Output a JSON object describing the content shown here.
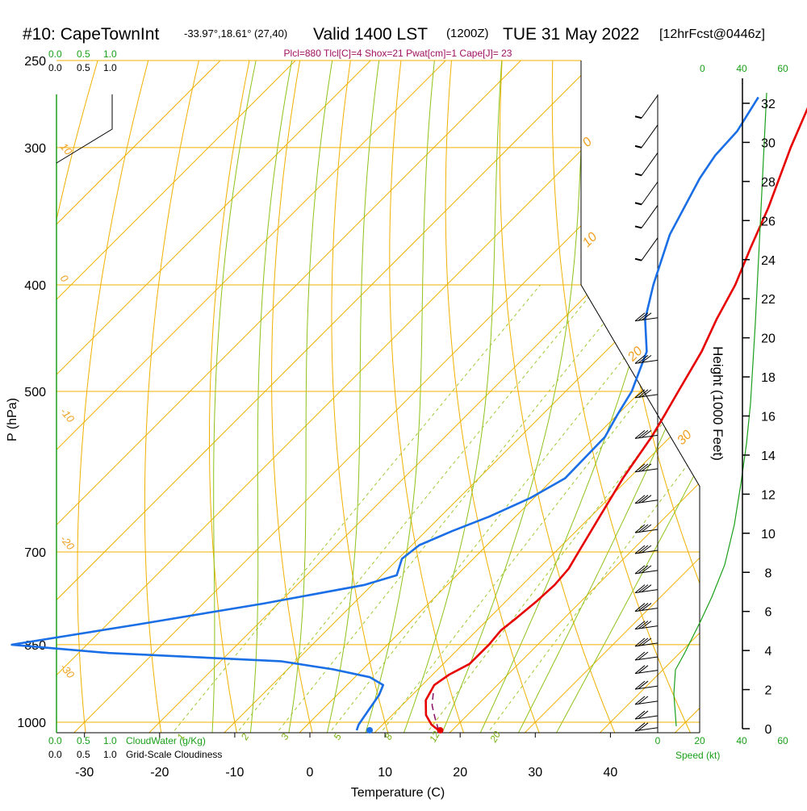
{
  "header": {
    "station": "#10: CapeTownInt",
    "location": "-33.97°,18.61° (27,40)",
    "valid_main": "Valid 1400 LST",
    "valid_z": "(1200Z)",
    "date": "TUE 31 May 2022",
    "forecast": "[12hrFcst@0446z]",
    "indices": "Plcl=880 Tlcl[C]=4 Shox=21 Pwat[cm]=1 Cape[J]= 23"
  },
  "colors": {
    "temperature": "#e60000",
    "dewpoint": "#1a6ee6",
    "parcel": "#8b1a6b",
    "isobar": "#f0b000",
    "dry_adiabat": "#f0b000",
    "moist_adiabat": "#8ec21a",
    "mixing_ratio": "#a0c832",
    "green_text": "#1aa01a",
    "indices_text": "#a01060"
  },
  "cloud_scale": {
    "top_green": [
      "0.0",
      "0.5",
      "1.0"
    ],
    "top_black": [
      "0.0",
      "0.5",
      "1.0"
    ],
    "bottom_green": [
      "0.0",
      "0.5",
      "1.0"
    ],
    "bottom_green_label": "CloudWater (g/Kg)",
    "bottom_black": [
      "0.0",
      "0.5",
      "1.0"
    ],
    "bottom_black_label": "Grid-Scale Cloudiness"
  },
  "speed_scale": {
    "top": [
      "0",
      "20",
      "40",
      "60"
    ],
    "bottom": [
      "0",
      "20",
      "40",
      "60"
    ],
    "label": "Speed (kt)"
  },
  "chart_data": {
    "type": "line",
    "subtype": "skew-T log-P",
    "xlabel": "Temperature (C)",
    "ylabel": "P (hPa)",
    "y2label": "Height (1000 Feet)",
    "x_ticks": [
      -30,
      -20,
      -10,
      0,
      10,
      20,
      30,
      40
    ],
    "pressure_ticks": [
      250,
      300,
      400,
      500,
      700,
      850,
      1000
    ],
    "height_ticks": [
      0,
      2,
      4,
      6,
      8,
      10,
      12,
      14,
      16,
      18,
      20,
      22,
      24,
      26,
      28,
      30,
      32
    ],
    "isotherm_labels": [
      "-30",
      "-20",
      "-10",
      "0",
      "10",
      "20",
      "30"
    ],
    "dry_adiabat_labels": [
      "10",
      "0",
      "-10",
      "-20",
      "-30"
    ],
    "mixing_ratio_labels": [
      "1",
      "2",
      "3",
      "5",
      "8",
      "12",
      "20"
    ],
    "series": [
      {
        "name": "temperature",
        "points": [
          [
            18.2,
            1017
          ],
          [
            16.5,
            1005
          ],
          [
            14.5,
            985
          ],
          [
            12.5,
            955
          ],
          [
            11.6,
            925
          ],
          [
            12.2,
            905
          ],
          [
            13.5,
            885
          ],
          [
            13.5,
            850
          ],
          [
            13.2,
            825
          ],
          [
            13.6,
            805
          ],
          [
            14.1,
            775
          ],
          [
            14.3,
            750
          ],
          [
            14.0,
            725
          ],
          [
            13.1,
            700
          ],
          [
            11.2,
            650
          ],
          [
            9.2,
            600
          ],
          [
            7.5,
            550
          ],
          [
            6.3,
            525
          ],
          [
            5.0,
            500
          ],
          [
            2.8,
            460
          ],
          [
            0.5,
            430
          ],
          [
            -1.6,
            400
          ],
          [
            -4.5,
            370
          ],
          [
            -7.5,
            340
          ],
          [
            -12.5,
            300
          ],
          [
            -16.3,
            270
          ]
        ]
      },
      {
        "name": "dewpoint",
        "points": [
          [
            7.3,
            1017
          ],
          [
            6.8,
            1005
          ],
          [
            6.2,
            975
          ],
          [
            5.6,
            945
          ],
          [
            4.8,
            925
          ],
          [
            2.0,
            910
          ],
          [
            -4.0,
            895
          ],
          [
            -12.0,
            880
          ],
          [
            -36.0,
            865
          ],
          [
            -50.0,
            850
          ],
          [
            -36.0,
            815
          ],
          [
            -22.0,
            780
          ],
          [
            -11.0,
            750
          ],
          [
            -8.0,
            735
          ],
          [
            -9.5,
            710
          ],
          [
            -9.0,
            690
          ],
          [
            -6.5,
            670
          ],
          [
            -3.5,
            650
          ],
          [
            -0.5,
            625
          ],
          [
            1.5,
            600
          ],
          [
            1.3,
            550
          ],
          [
            0.0,
            525
          ],
          [
            -1.2,
            500
          ],
          [
            -4.5,
            460
          ],
          [
            -9.0,
            430
          ],
          [
            -12.5,
            400
          ],
          [
            -17.0,
            360
          ],
          [
            -20.5,
            320
          ],
          [
            -21.5,
            305
          ],
          [
            -21.8,
            290
          ],
          [
            -23.5,
            270
          ]
        ]
      },
      {
        "name": "parcel",
        "points": [
          [
            18.2,
            1017
          ],
          [
            16.0,
            990
          ],
          [
            14.0,
            965
          ],
          [
            12.2,
            935
          ]
        ]
      }
    ],
    "wind_barbs": [
      {
        "p": 282,
        "speed_kt": 5
      },
      {
        "p": 300,
        "speed_kt": 5
      },
      {
        "p": 318,
        "speed_kt": 5
      },
      {
        "p": 338,
        "speed_kt": 5
      },
      {
        "p": 355,
        "speed_kt": 5
      },
      {
        "p": 380,
        "speed_kt": 5
      },
      {
        "p": 430,
        "speed_kt": 30
      },
      {
        "p": 470,
        "speed_kt": 30
      },
      {
        "p": 505,
        "speed_kt": 30
      },
      {
        "p": 550,
        "speed_kt": 25
      },
      {
        "p": 590,
        "speed_kt": 25
      },
      {
        "p": 630,
        "speed_kt": 25
      },
      {
        "p": 670,
        "speed_kt": 25
      },
      {
        "p": 700,
        "speed_kt": 25
      },
      {
        "p": 730,
        "speed_kt": 25
      },
      {
        "p": 760,
        "speed_kt": 25
      },
      {
        "p": 790,
        "speed_kt": 25
      },
      {
        "p": 820,
        "speed_kt": 25
      },
      {
        "p": 850,
        "speed_kt": 25
      },
      {
        "p": 875,
        "speed_kt": 20
      },
      {
        "p": 900,
        "speed_kt": 20
      },
      {
        "p": 930,
        "speed_kt": 20
      },
      {
        "p": 960,
        "speed_kt": 20
      },
      {
        "p": 990,
        "speed_kt": 20
      },
      {
        "p": 1015,
        "speed_kt": 20
      }
    ]
  }
}
